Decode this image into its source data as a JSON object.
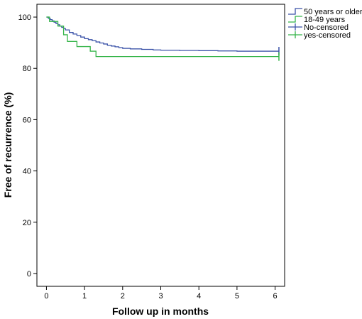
{
  "chart_data": {
    "type": "line",
    "title": "",
    "xlabel": "Follow up in months",
    "ylabel": "Free of recurrence (%)",
    "xlim": [
      -0.25,
      6.25
    ],
    "ylim": [
      -5,
      105
    ],
    "x_ticks": [
      0,
      1,
      2,
      3,
      4,
      5,
      6
    ],
    "y_ticks": [
      0,
      20,
      40,
      60,
      80,
      100
    ],
    "legend_placement": "outside-top-right",
    "legend": [
      {
        "label": "50 years or older",
        "kind": "step",
        "color": "#3a52a8"
      },
      {
        "label": "18-49 years",
        "kind": "step",
        "color": "#36b54a"
      },
      {
        "label": "No-censored",
        "kind": "censor",
        "color": "#3a52a8"
      },
      {
        "label": "yes-censored",
        "kind": "censor",
        "color": "#36b54a"
      }
    ],
    "series": [
      {
        "name": "50 years or older",
        "color": "#3a52a8",
        "step": true,
        "x": [
          0,
          0.05,
          0.1,
          0.15,
          0.2,
          0.25,
          0.3,
          0.35,
          0.4,
          0.45,
          0.5,
          0.6,
          0.7,
          0.8,
          0.9,
          1.0,
          1.1,
          1.2,
          1.3,
          1.4,
          1.5,
          1.6,
          1.7,
          1.8,
          1.9,
          2.0,
          2.2,
          2.5,
          2.8,
          3.0,
          3.5,
          4.0,
          4.5,
          5.0,
          6.1
        ],
        "y": [
          100,
          99.5,
          99,
          98.5,
          98,
          97.5,
          97,
          96.5,
          96,
          95.5,
          95,
          94,
          93.4,
          92.8,
          92.2,
          91.6,
          91.2,
          90.8,
          90.3,
          89.9,
          89.5,
          89,
          88.7,
          88.4,
          88.1,
          87.8,
          87.6,
          87.4,
          87.2,
          87.1,
          87,
          86.9,
          86.8,
          86.7,
          86.7
        ],
        "censor_at": [
          6.1
        ]
      },
      {
        "name": "18-49 years",
        "color": "#36b54a",
        "step": true,
        "x": [
          0,
          0.08,
          0.3,
          0.45,
          0.55,
          0.8,
          1.15,
          1.3,
          6.1
        ],
        "y": [
          100,
          98.3,
          96.5,
          93.1,
          90.5,
          88.5,
          86.7,
          84.6,
          84.6
        ],
        "censor_at": [
          6.1
        ]
      }
    ]
  }
}
